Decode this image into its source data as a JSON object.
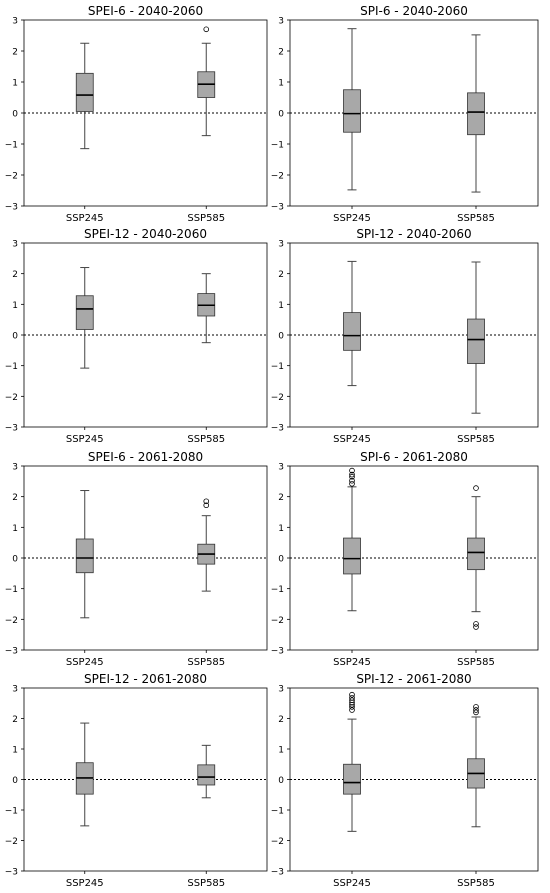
{
  "chart_data": [
    {
      "type": "box",
      "title": "SPEI-6 - 2040-2060",
      "categories": [
        "SSP245",
        "SSP585"
      ],
      "ylim": [
        -3,
        3
      ],
      "yticks": [
        -3,
        -2,
        -1,
        0,
        1,
        2,
        3
      ],
      "reference_line": 0,
      "series": [
        {
          "q1": 0.05,
          "median": 0.58,
          "q3": 1.28,
          "whisker_low": -1.15,
          "whisker_high": 2.25,
          "outliers": []
        },
        {
          "q1": 0.5,
          "median": 0.93,
          "q3": 1.33,
          "whisker_low": -0.73,
          "whisker_high": 2.25,
          "outliers": [
            2.7
          ]
        }
      ]
    },
    {
      "type": "box",
      "title": "SPI-6 - 2040-2060",
      "categories": [
        "SSP245",
        "SSP585"
      ],
      "ylim": [
        -3,
        3
      ],
      "yticks": [
        -3,
        -2,
        -1,
        0,
        1,
        2,
        3
      ],
      "reference_line": 0,
      "series": [
        {
          "q1": -0.62,
          "median": -0.02,
          "q3": 0.75,
          "whisker_low": -2.48,
          "whisker_high": 2.72,
          "outliers": []
        },
        {
          "q1": -0.7,
          "median": 0.03,
          "q3": 0.65,
          "whisker_low": -2.55,
          "whisker_high": 2.52,
          "outliers": []
        }
      ]
    },
    {
      "type": "box",
      "title": "SPEI-12 - 2040-2060",
      "categories": [
        "SSP245",
        "SSP585"
      ],
      "ylim": [
        -3,
        3
      ],
      "yticks": [
        -3,
        -2,
        -1,
        0,
        1,
        2,
        3
      ],
      "reference_line": 0,
      "series": [
        {
          "q1": 0.18,
          "median": 0.85,
          "q3": 1.28,
          "whisker_low": -1.08,
          "whisker_high": 2.2,
          "outliers": []
        },
        {
          "q1": 0.62,
          "median": 0.97,
          "q3": 1.35,
          "whisker_low": -0.25,
          "whisker_high": 2.0,
          "outliers": []
        }
      ]
    },
    {
      "type": "box",
      "title": "SPI-12 - 2040-2060",
      "categories": [
        "SSP245",
        "SSP585"
      ],
      "ylim": [
        -3,
        3
      ],
      "yticks": [
        -3,
        -2,
        -1,
        0,
        1,
        2,
        3
      ],
      "reference_line": 0,
      "series": [
        {
          "q1": -0.5,
          "median": -0.02,
          "q3": 0.73,
          "whisker_low": -1.65,
          "whisker_high": 2.4,
          "outliers": []
        },
        {
          "q1": -0.93,
          "median": -0.15,
          "q3": 0.52,
          "whisker_low": -2.55,
          "whisker_high": 2.38,
          "outliers": []
        }
      ]
    },
    {
      "type": "box",
      "title": "SPEI-6 - 2061-2080",
      "categories": [
        "SSP245",
        "SSP585"
      ],
      "ylim": [
        -3,
        3
      ],
      "yticks": [
        -3,
        -2,
        -1,
        0,
        1,
        2,
        3
      ],
      "reference_line": 0,
      "series": [
        {
          "q1": -0.48,
          "median": 0.0,
          "q3": 0.62,
          "whisker_low": -1.95,
          "whisker_high": 2.2,
          "outliers": []
        },
        {
          "q1": -0.2,
          "median": 0.13,
          "q3": 0.45,
          "whisker_low": -1.08,
          "whisker_high": 1.38,
          "outliers": [
            1.72,
            1.85
          ]
        }
      ]
    },
    {
      "type": "box",
      "title": "SPI-6 - 2061-2080",
      "categories": [
        "SSP245",
        "SSP585"
      ],
      "ylim": [
        -3,
        3
      ],
      "yticks": [
        -3,
        -2,
        -1,
        0,
        1,
        2,
        3
      ],
      "reference_line": 0,
      "series": [
        {
          "q1": -0.52,
          "median": -0.02,
          "q3": 0.65,
          "whisker_low": -1.72,
          "whisker_high": 2.32,
          "outliers": [
            2.42,
            2.52,
            2.65,
            2.72,
            2.85
          ]
        },
        {
          "q1": -0.38,
          "median": 0.18,
          "q3": 0.65,
          "whisker_low": -1.75,
          "whisker_high": 2.0,
          "outliers": [
            2.28,
            -2.15,
            -2.25
          ]
        }
      ]
    },
    {
      "type": "box",
      "title": "SPEI-12 - 2061-2080",
      "categories": [
        "SSP245",
        "SSP585"
      ],
      "ylim": [
        -3,
        3
      ],
      "yticks": [
        -3,
        -2,
        -1,
        0,
        1,
        2,
        3
      ],
      "reference_line": 0,
      "series": [
        {
          "q1": -0.48,
          "median": 0.05,
          "q3": 0.55,
          "whisker_low": -1.52,
          "whisker_high": 1.85,
          "outliers": []
        },
        {
          "q1": -0.18,
          "median": 0.08,
          "q3": 0.48,
          "whisker_low": -0.6,
          "whisker_high": 1.12,
          "outliers": []
        }
      ]
    },
    {
      "type": "box",
      "title": "SPI-12 - 2061-2080",
      "categories": [
        "SSP245",
        "SSP585"
      ],
      "ylim": [
        -3,
        3
      ],
      "yticks": [
        -3,
        -2,
        -1,
        0,
        1,
        2,
        3
      ],
      "reference_line": 0,
      "series": [
        {
          "q1": -0.48,
          "median": -0.1,
          "q3": 0.5,
          "whisker_low": -1.7,
          "whisker_high": 1.98,
          "outliers": [
            2.28,
            2.38,
            2.45,
            2.52,
            2.6,
            2.68,
            2.78
          ]
        },
        {
          "q1": -0.28,
          "median": 0.2,
          "q3": 0.68,
          "whisker_low": -1.55,
          "whisker_high": 2.05,
          "outliers": [
            2.2,
            2.28,
            2.38
          ]
        }
      ]
    }
  ],
  "colors": {
    "box_fill": "#a8a8a8",
    "line": "#000000",
    "whisker": "#444444",
    "reference_line": "#000000"
  }
}
